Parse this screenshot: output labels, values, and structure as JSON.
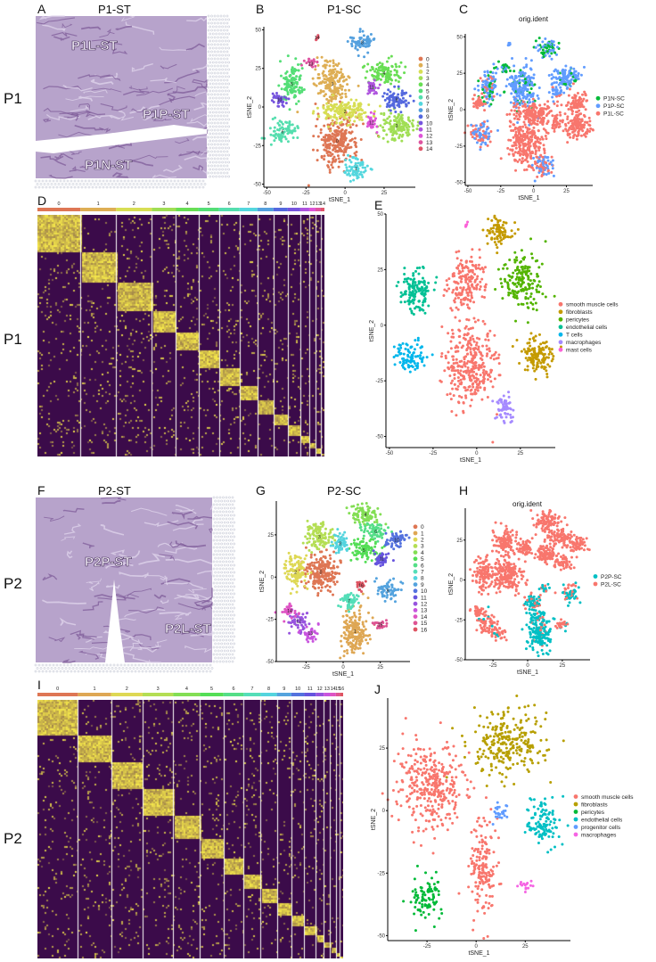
{
  "rows": [
    "P1",
    "P1",
    "P2",
    "P2"
  ],
  "panels": {
    "A": {
      "label": "A",
      "title": "P1-ST",
      "regions": [
        "P1L-ST",
        "P1P-ST",
        "P1N-ST"
      ]
    },
    "B": {
      "label": "B",
      "title": "P1-SC"
    },
    "C": {
      "label": "C",
      "title": "orig.ident"
    },
    "D": {
      "label": "D"
    },
    "E": {
      "label": "E"
    },
    "F": {
      "label": "F",
      "title": "P2-ST",
      "regions": [
        "P2P-ST",
        "P2L-ST"
      ]
    },
    "G": {
      "label": "G",
      "title": "P2-SC"
    },
    "H": {
      "label": "H",
      "title": "orig.ident"
    },
    "I": {
      "label": "I"
    },
    "J": {
      "label": "J"
    }
  },
  "chart_data": [
    {
      "panel": "B",
      "type": "scatter",
      "xlabel": "tSNE_1",
      "ylabel": "tSNE_2",
      "xlim": [
        -52,
        45
      ],
      "ylim": [
        -52,
        52
      ],
      "xticks": [
        -50,
        -25,
        0,
        25
      ],
      "yticks": [
        -50,
        -25,
        0,
        25,
        50
      ],
      "legend": [
        "0",
        "1",
        "2",
        "3",
        "4",
        "5",
        "6",
        "7",
        "8",
        "9",
        "10",
        "11",
        "12",
        "13",
        "14"
      ],
      "legend_position": "right",
      "cluster_labels": true,
      "clusters": [
        [
          -5,
          -22,
          9,
          11,
          260,
          0
        ],
        [
          -8,
          15,
          7,
          10,
          200,
          1
        ],
        [
          0,
          -3,
          11,
          5,
          170,
          2
        ],
        [
          33,
          -12,
          7,
          6,
          130,
          3
        ],
        [
          25,
          22,
          8,
          5,
          110,
          4
        ],
        [
          -34,
          15,
          5,
          8,
          110,
          5
        ],
        [
          -40,
          -16,
          6,
          5,
          80,
          6
        ],
        [
          7,
          -40,
          5,
          5,
          70,
          7
        ],
        [
          11,
          42,
          5,
          4,
          70,
          8
        ],
        [
          33,
          5,
          5,
          5,
          80,
          9
        ],
        [
          -42,
          5,
          3,
          3,
          35,
          10
        ],
        [
          17,
          13,
          3,
          3,
          35,
          11
        ],
        [
          17,
          -10,
          2.5,
          4,
          30,
          12
        ],
        [
          -22,
          28,
          3,
          2,
          22,
          13
        ],
        [
          -18,
          45,
          0.8,
          1,
          6,
          14
        ]
      ]
    },
    {
      "panel": "C",
      "type": "scatter",
      "xlabel": "tSNE_1",
      "ylabel": "tSNE_2",
      "xlim": [
        -52,
        45
      ],
      "ylim": [
        -52,
        52
      ],
      "xticks": [
        -50,
        -25,
        0,
        25
      ],
      "yticks": [
        -50,
        -25,
        0,
        25,
        50
      ],
      "legend": [
        "P1N-SC",
        "P1P-SC",
        "P1L-SC"
      ],
      "colors": [
        "#00BA38",
        "#619CFF",
        "#F8766D"
      ],
      "legend_position": "right",
      "cluster_labels": false,
      "clusters": [
        [
          -5,
          -22,
          9,
          11,
          260,
          [
            0,
            0,
            1
          ]
        ],
        [
          -8,
          15,
          7,
          10,
          200,
          [
            0.15,
            0.85,
            0
          ]
        ],
        [
          0,
          -3,
          11,
          5,
          170,
          [
            0,
            0,
            1
          ]
        ],
        [
          33,
          -12,
          7,
          6,
          130,
          [
            0,
            0,
            1
          ]
        ],
        [
          25,
          22,
          8,
          5,
          110,
          [
            0.1,
            0.9,
            0
          ]
        ],
        [
          -34,
          15,
          5,
          8,
          110,
          [
            0.2,
            0.6,
            0.2
          ]
        ],
        [
          -40,
          -16,
          6,
          5,
          80,
          [
            0,
            0.5,
            0.5
          ]
        ],
        [
          7,
          -40,
          5,
          5,
          70,
          [
            0,
            0.5,
            0.5
          ]
        ],
        [
          11,
          42,
          5,
          4,
          70,
          [
            0.5,
            0.5,
            0
          ]
        ],
        [
          33,
          5,
          5,
          5,
          80,
          [
            0,
            0,
            1
          ]
        ],
        [
          -42,
          5,
          3,
          3,
          35,
          [
            0,
            0,
            1
          ]
        ],
        [
          17,
          13,
          3,
          3,
          35,
          [
            0,
            0.7,
            0.3
          ]
        ],
        [
          17,
          -10,
          2.5,
          4,
          30,
          [
            0,
            0,
            1
          ]
        ],
        [
          -22,
          28,
          3,
          2,
          22,
          [
            0.6,
            0.4,
            0
          ]
        ],
        [
          -18,
          45,
          0.8,
          1,
          6,
          [
            0,
            1,
            0
          ]
        ]
      ]
    },
    {
      "panel": "D",
      "type": "heatmap",
      "groups": [
        "0",
        "1",
        "2",
        "3",
        "4",
        "5",
        "6",
        "7",
        "8",
        "9",
        "10",
        "11",
        "12",
        "13",
        "14"
      ],
      "group_sizes": [
        48,
        40,
        40,
        27,
        25,
        23,
        23,
        20,
        18,
        16,
        14,
        10,
        7,
        6,
        4
      ],
      "low_color": "#3b0b4a",
      "high_color": "#f3e54b"
    },
    {
      "panel": "E",
      "type": "scatter",
      "xlabel": "tSNE_1",
      "ylabel": "tSNE_2",
      "xlim": [
        -52,
        45
      ],
      "ylim": [
        -55,
        50
      ],
      "xticks": [
        -50,
        -25,
        0,
        25
      ],
      "yticks": [
        -50,
        -25,
        0,
        25,
        50
      ],
      "legend": [
        "smooth muscle cells",
        "fibroblasts",
        "pericytes",
        "endothelial cells",
        "T cells",
        "macrophages",
        "mast cells"
      ],
      "colors": [
        "#F8766D",
        "#C49A00",
        "#53B400",
        "#00C094",
        "#00B6EB",
        "#A58AFF",
        "#FB61D7"
      ],
      "legend_position": "right",
      "cluster_labels": false,
      "clusters": [
        [
          -4,
          -18,
          10,
          12,
          320,
          0
        ],
        [
          -6,
          20,
          7,
          9,
          180,
          0
        ],
        [
          35,
          -14,
          6,
          5,
          140,
          1
        ],
        [
          13,
          42,
          5,
          4,
          80,
          1
        ],
        [
          26,
          20,
          8,
          8,
          170,
          2
        ],
        [
          -35,
          15,
          6,
          7,
          130,
          3
        ],
        [
          -37,
          -14,
          6,
          5,
          90,
          4
        ],
        [
          16,
          -38,
          4,
          4,
          60,
          5
        ],
        [
          -6,
          45,
          0.6,
          0.8,
          5,
          6
        ]
      ]
    },
    {
      "panel": "G",
      "type": "scatter",
      "xlabel": "tSNE_1",
      "ylabel": "tSNE_2",
      "xlim": [
        -45,
        45
      ],
      "ylim": [
        -50,
        45
      ],
      "xticks": [
        -25,
        0,
        25
      ],
      "yticks": [
        -50,
        -25,
        0,
        25
      ],
      "legend": [
        "0",
        "1",
        "2",
        "3",
        "4",
        "5",
        "6",
        "7",
        "8",
        "9",
        "10",
        "11",
        "12",
        "13",
        "14",
        "15",
        "16"
      ],
      "legend_position": "right",
      "cluster_labels": true,
      "clusters": [
        [
          -15,
          3,
          7,
          7,
          200,
          0
        ],
        [
          8,
          -32,
          6,
          9,
          180,
          1
        ],
        [
          -32,
          3,
          5,
          7,
          110,
          2
        ],
        [
          -16,
          24,
          6,
          5,
          110,
          3
        ],
        [
          15,
          37,
          6,
          4,
          90,
          4
        ],
        [
          14,
          16,
          6,
          4,
          90,
          5
        ],
        [
          22,
          27,
          6,
          3,
          70,
          6
        ],
        [
          4,
          -14,
          4,
          3,
          60,
          7
        ],
        [
          -2,
          20,
          4,
          4,
          60,
          8
        ],
        [
          30,
          -8,
          5,
          4,
          60,
          9
        ],
        [
          36,
          22,
          5,
          3,
          60,
          10
        ],
        [
          26,
          11,
          4,
          3,
          50,
          11
        ],
        [
          -30,
          -26,
          4,
          4,
          50,
          12
        ],
        [
          -22,
          -33,
          4,
          3,
          40,
          13
        ],
        [
          -36,
          -20,
          3,
          3,
          30,
          14
        ],
        [
          25,
          -28,
          3,
          2,
          25,
          15
        ],
        [
          12,
          -5,
          2,
          2,
          20,
          16
        ]
      ]
    },
    {
      "panel": "H",
      "type": "scatter",
      "xlabel": "tSNE_1",
      "ylabel": "tSNE_2",
      "xlim": [
        -45,
        45
      ],
      "ylim": [
        -50,
        45
      ],
      "xticks": [
        -25,
        0,
        25
      ],
      "yticks": [
        -50,
        -25,
        0,
        25
      ],
      "legend": [
        "P2P-SC",
        "P2L-SC"
      ],
      "colors": [
        "#00BFC4",
        "#F8766D"
      ],
      "legend_position": "right",
      "cluster_labels": false,
      "clusters": [
        [
          -15,
          3,
          7,
          7,
          200,
          [
            0,
            1
          ]
        ],
        [
          8,
          -32,
          6,
          9,
          180,
          [
            0.9,
            0.1
          ]
        ],
        [
          -32,
          3,
          5,
          7,
          110,
          [
            0,
            1
          ]
        ],
        [
          -16,
          24,
          6,
          5,
          110,
          [
            0,
            1
          ]
        ],
        [
          15,
          37,
          6,
          4,
          90,
          [
            0,
            1
          ]
        ],
        [
          14,
          16,
          6,
          4,
          90,
          [
            0,
            1
          ]
        ],
        [
          22,
          27,
          6,
          3,
          70,
          [
            0,
            1
          ]
        ],
        [
          4,
          -14,
          4,
          3,
          60,
          [
            0.8,
            0.2
          ]
        ],
        [
          -2,
          20,
          4,
          4,
          60,
          [
            0,
            1
          ]
        ],
        [
          30,
          -8,
          5,
          4,
          60,
          [
            0.5,
            0.5
          ]
        ],
        [
          36,
          22,
          5,
          3,
          60,
          [
            0,
            1
          ]
        ],
        [
          26,
          11,
          4,
          3,
          50,
          [
            0,
            1
          ]
        ],
        [
          -30,
          -26,
          4,
          4,
          50,
          [
            0.1,
            0.9
          ]
        ],
        [
          -22,
          -33,
          4,
          3,
          40,
          [
            0.1,
            0.9
          ]
        ],
        [
          -36,
          -20,
          3,
          3,
          30,
          [
            0,
            1
          ]
        ],
        [
          25,
          -28,
          3,
          2,
          25,
          [
            0.3,
            0.7
          ]
        ],
        [
          12,
          -5,
          2,
          2,
          20,
          [
            0.7,
            0.3
          ]
        ]
      ]
    },
    {
      "panel": "I",
      "type": "heatmap",
      "groups": [
        "0",
        "1",
        "2",
        "3",
        "4",
        "5",
        "6",
        "7",
        "8",
        "9",
        "10",
        "11",
        "12",
        "13",
        "14",
        "15",
        "16"
      ],
      "group_sizes": [
        50,
        41,
        39,
        38,
        33,
        29,
        25,
        21,
        20,
        18,
        16,
        14,
        10,
        8,
        7,
        5,
        4
      ],
      "low_color": "#3b0b4a",
      "high_color": "#f3e54b"
    },
    {
      "panel": "J",
      "type": "scatter",
      "xlabel": "tSNE_1",
      "ylabel": "tSNE_2",
      "xlim": [
        -45,
        48
      ],
      "ylim": [
        -52,
        45
      ],
      "xticks": [
        -25,
        0,
        25
      ],
      "yticks": [
        -50,
        -25,
        0,
        25
      ],
      "legend": [
        "smooth muscle cells",
        "fibroblasts",
        "pericytes",
        "endothelial cells",
        "progenitor cells",
        "macrophages"
      ],
      "colors": [
        "#F8766D",
        "#B79F00",
        "#00BA38",
        "#00BFC4",
        "#619CFF",
        "#F564E3"
      ],
      "legend_position": "right",
      "cluster_labels": false,
      "clusters": [
        [
          -22,
          10,
          11,
          12,
          340,
          0
        ],
        [
          4,
          -24,
          5,
          12,
          170,
          0
        ],
        [
          15,
          27,
          12,
          8,
          260,
          1
        ],
        [
          -25,
          -35,
          6,
          5,
          90,
          2
        ],
        [
          35,
          -5,
          6,
          6,
          110,
          3
        ],
        [
          12,
          0,
          2.5,
          3,
          25,
          4
        ],
        [
          25,
          -30,
          3,
          1.5,
          15,
          5
        ]
      ]
    }
  ]
}
